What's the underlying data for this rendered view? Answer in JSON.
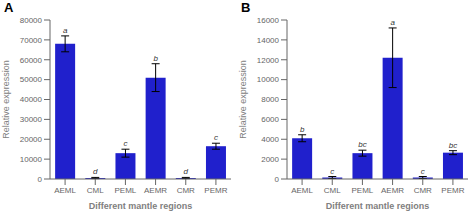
{
  "chart_data": [
    {
      "type": "bar",
      "title": "A",
      "categories": [
        "AEML",
        "CML",
        "PEML",
        "AEMR",
        "CMR",
        "PEMR"
      ],
      "values": [
        68000,
        500,
        13000,
        51000,
        500,
        16500
      ],
      "errors": [
        4000,
        300,
        2000,
        7000,
        300,
        1500
      ],
      "annotations": [
        "a",
        "d",
        "c",
        "b",
        "d",
        "c"
      ],
      "ylabel": "Relative expression",
      "xlabel": "Different mantle regions",
      "ylim": [
        0,
        80000
      ],
      "yticks": [
        0,
        10000,
        20000,
        30000,
        40000,
        50000,
        60000,
        70000,
        80000
      ],
      "color": "#2020cc",
      "grid": false
    },
    {
      "type": "bar",
      "title": "B",
      "categories": [
        "AEML",
        "CML",
        "PEML",
        "AEMR",
        "CMR",
        "PEMR"
      ],
      "values": [
        4100,
        150,
        2600,
        12200,
        150,
        2650
      ],
      "errors": [
        350,
        100,
        300,
        3000,
        100,
        200
      ],
      "annotations": [
        "b",
        "c",
        "bc",
        "a",
        "c",
        "bc"
      ],
      "ylabel": "Relative expression",
      "xlabel": "Different mantle regions",
      "ylim": [
        0,
        16000
      ],
      "yticks": [
        0,
        2000,
        4000,
        6000,
        8000,
        10000,
        12000,
        14000,
        16000
      ],
      "color": "#2020cc",
      "grid": false
    }
  ]
}
